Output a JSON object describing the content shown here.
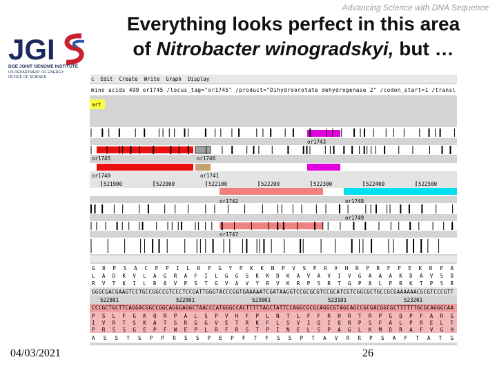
{
  "header": {
    "tagline": "Advancing Science with DNA Sequence",
    "title_line1": "Everything looks perfect in this area",
    "title_line2_prefix": "of ",
    "title_line2_italic": "Nitrobacter winogradskyi,",
    "title_line2_suffix": " but …"
  },
  "logo": {
    "letters": "JGI",
    "line1": "DOE JOINT GENOME INSTITUTE",
    "line2": "US DEPARTMENT OF ENERGY",
    "line3": "OFFICE OF SCIENCE"
  },
  "browser": {
    "menu": [
      "c",
      "Edit",
      "Create",
      "Write",
      "Graph",
      "Display"
    ],
    "qualifier_line": "mino acids 499  or1745  /locus_tag=\"or1745\" /product=\"Dihydroorotate dehydrogenase 2\" /codon_start=1 /transl",
    "selection": "art",
    "features": [
      "or1743",
      "or1745",
      "or1746",
      "or1740",
      "or1741",
      "or1742",
      "or1748",
      "or1749",
      "or1747"
    ],
    "ruler": [
      "521900",
      "522000",
      "522100",
      "522200",
      "522300",
      "522400",
      "522500"
    ],
    "sequence_rows": [
      "G R P S A C P P I L R P G Y P K K N P V S P R V H R P R F P E K R P A",
      "L A D K V L A G R A F I L G G S K K D K A V A V I V G A A A K D A V S D",
      "R V T K I L R A V P S T G V A V Y R V K R P S R T G P A L P R K T P S R",
      "GGGCGACGAAGTCCTGCCGGCCGTCCCTCCGATTGGGTACCCGGTGAAAAATCGATAAGGTCCGCGCGTCCGCATCGTCGGCGCTGCCGCGAAAAAACGCGTCCCGTT",
      "CCCGCTGCTTCAGGACGGCCGGCAGGGAGGCTAACCCATGGGCCACTTTTTAGCTATTCCAGGCGCGCAGGCGTAGCAGCCGCGACGGCGCTTTTTTGCGCAGGGCAA",
      "P S L F G K Q R P A L S P V H F P L N T L F F R H R T R P G Q P F A R G",
      "I V R T S K A T S R G G V E T R K F L S V I Q I Q R P S F A L P R E L T",
      "P R S S G E P F W E P L R F R S T P I N E L S P A G L K M D R A F V G H",
      "A S S T S P P R S S P E P F T F S S P T A V R R P S A F T A T G"
    ],
    "ruler2": [
      "522801",
      "522901",
      "523001",
      "523101",
      "523201"
    ]
  },
  "footer": {
    "date": "04/03/2021",
    "page": "26"
  }
}
